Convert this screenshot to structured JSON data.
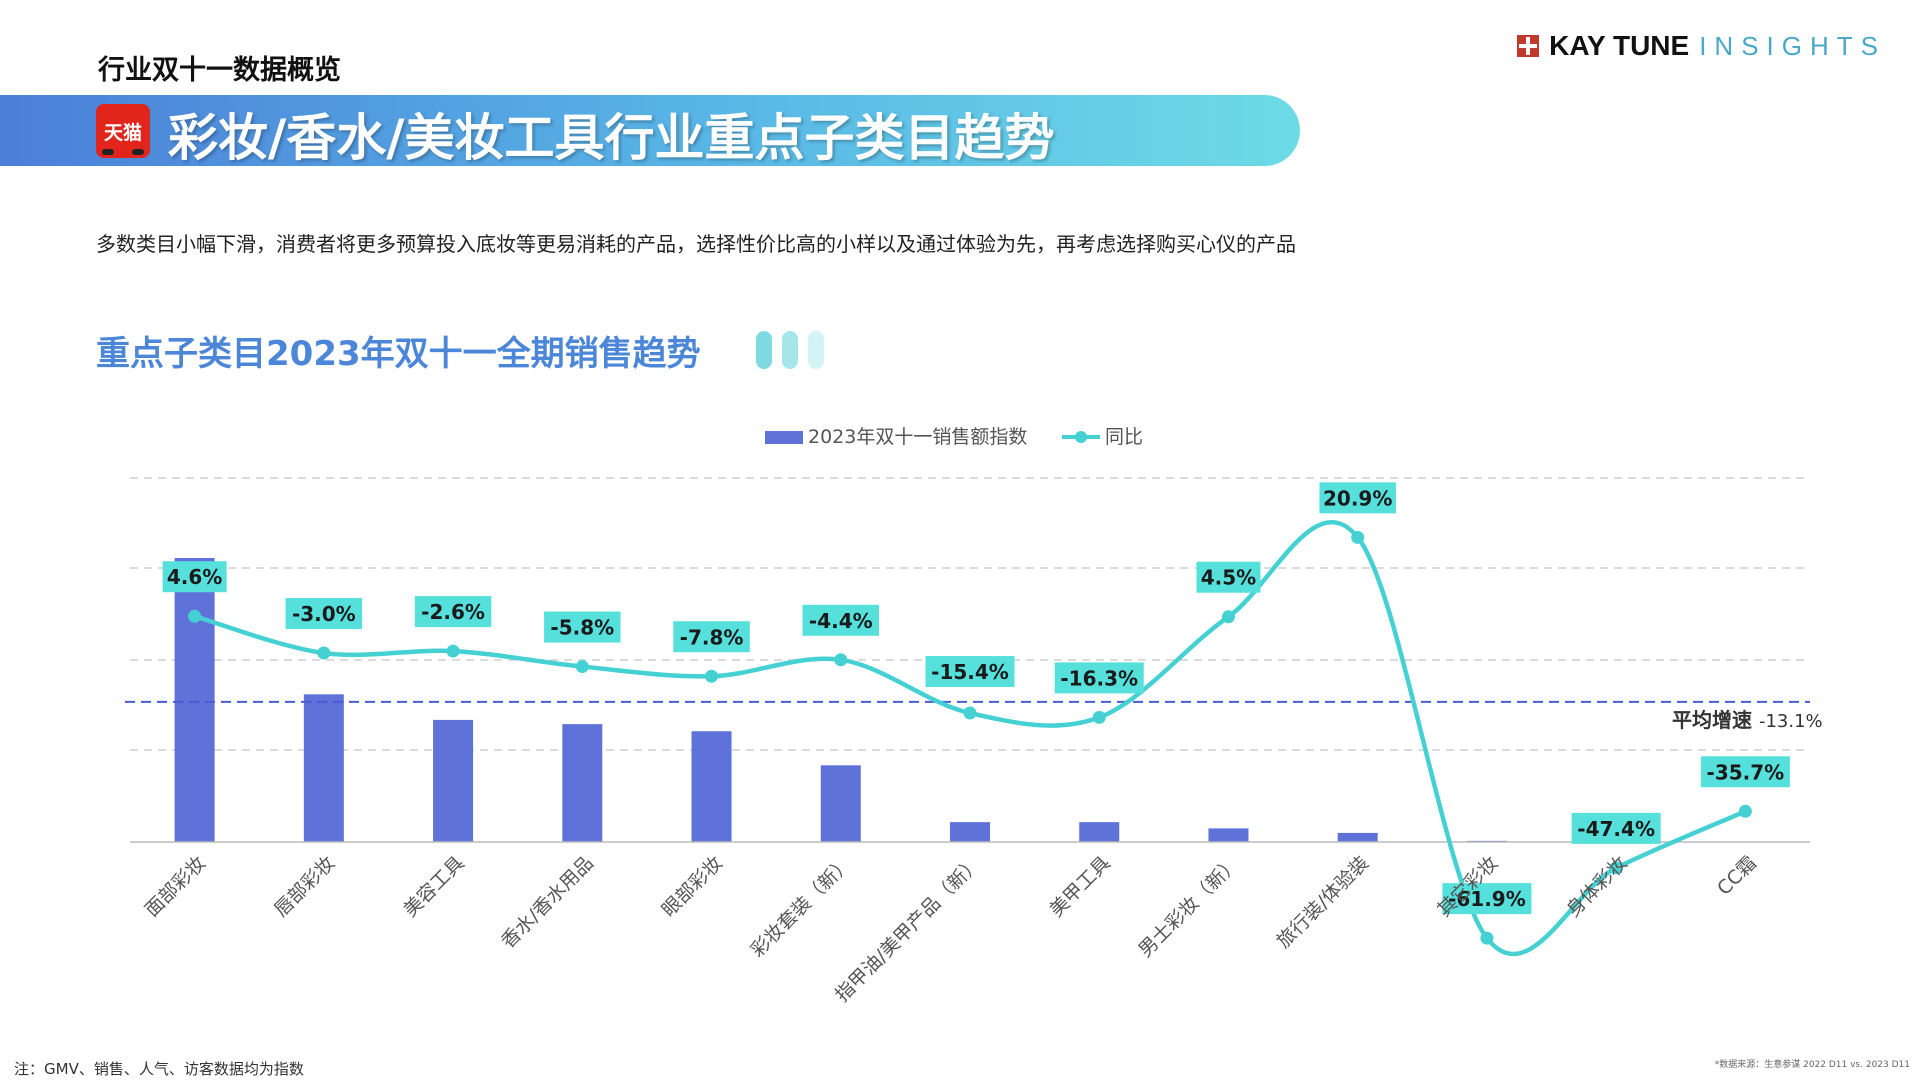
{
  "header": {
    "section_label": "行业双十一数据概览",
    "brand_name": "KAY TUNE",
    "brand_tag": "INSIGHTS",
    "platform_badge": "天猫",
    "title": "彩妆/香水/美妆工具行业重点子类目趋势"
  },
  "summary": "多数类目小幅下滑，消费者将更多预算投入底妆等更易消耗的产品，选择性价比高的小样以及通过体验为先，再考虑选择购买心仪的产品",
  "chart_title": "重点子类目2023年双十一全期销售趋势",
  "footnote": "注：GMV、销售、人气、访客数据均为指数",
  "source": "*数据来源：生意参谋 2022 D11 vs. 2023 D11",
  "colors": {
    "bar": "#5f72d9",
    "line": "#45d0d3",
    "label_bg": "#55e0dc",
    "avg_line": "#4a5bd6",
    "grid": "#cfcfcf",
    "axis_text": "#555555"
  },
  "chart_data": {
    "type": "bar+line",
    "legend_position": "top-center",
    "categories": [
      "面部彩妆",
      "唇部彩妆",
      "美容工具",
      "香水/香水用品",
      "眼部彩妆",
      "彩妆套装（新）",
      "指甲油/美甲产品（新）",
      "美甲工具",
      "男士彩妆（新）",
      "旅行装/体验装",
      "其它彩妆",
      "身体彩妆",
      "CC霜"
    ],
    "series": [
      {
        "name": "2023年双十一销售额指数",
        "type": "bar",
        "axis": "left",
        "values": [
          100,
          52,
          43,
          41.5,
          39,
          27,
          7,
          7,
          4.8,
          3.2,
          0.4,
          0.3,
          0
        ]
      },
      {
        "name": "同比",
        "type": "line",
        "axis": "right",
        "values": [
          4.6,
          -3.0,
          -2.6,
          -5.8,
          -7.8,
          -4.4,
          -15.4,
          -16.3,
          4.5,
          20.9,
          -61.9,
          -47.4,
          -35.7
        ],
        "labels": [
          "4.6%",
          "-3.0%",
          "-2.6%",
          "-5.8%",
          "-7.8%",
          "-4.4%",
          "-15.4%",
          "-16.3%",
          "4.5%",
          "20.9%",
          "-61.9%",
          "-47.4%",
          "-35.7%"
        ]
      }
    ],
    "reference_line": {
      "label": "平均增速",
      "value": -13.1,
      "value_label": "-13.1%"
    },
    "grid": true
  }
}
